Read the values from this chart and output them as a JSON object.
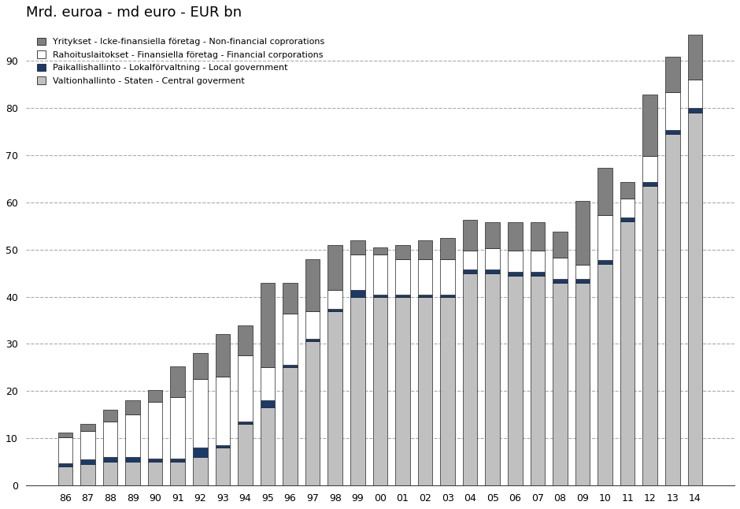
{
  "years": [
    "86",
    "87",
    "88",
    "89",
    "90",
    "91",
    "92",
    "93",
    "94",
    "95",
    "96",
    "97",
    "98",
    "99",
    "00",
    "01",
    "02",
    "03",
    "04",
    "05",
    "06",
    "07",
    "08",
    "09",
    "10",
    "11",
    "12",
    "13",
    "14"
  ],
  "central_gov": [
    4.0,
    4.5,
    5.0,
    5.0,
    5.0,
    5.0,
    6.0,
    8.0,
    13.0,
    16.5,
    25.0,
    30.5,
    37.0,
    40.0,
    40.0,
    40.0,
    40.0,
    40.0,
    45.0,
    45.0,
    44.5,
    44.5,
    43.0,
    43.0,
    47.0,
    56.0,
    63.5,
    74.5,
    79.0
  ],
  "local_gov": [
    0.8,
    1.0,
    1.0,
    1.0,
    0.8,
    0.8,
    2.0,
    0.5,
    0.5,
    1.5,
    0.5,
    0.5,
    0.5,
    1.5,
    0.5,
    0.5,
    0.5,
    0.5,
    0.8,
    0.8,
    0.8,
    0.8,
    0.8,
    0.8,
    0.8,
    0.8,
    0.8,
    0.8,
    1.0
  ],
  "financial_corp": [
    5.5,
    6.0,
    7.5,
    9.0,
    12.0,
    13.0,
    14.5,
    14.5,
    14.0,
    7.0,
    11.0,
    6.0,
    4.0,
    7.5,
    8.5,
    7.5,
    7.5,
    7.5,
    4.0,
    4.5,
    4.5,
    4.5,
    4.5,
    3.0,
    9.5,
    4.0,
    5.5,
    8.0,
    6.0
  ],
  "non_financial": [
    1.0,
    1.5,
    2.5,
    3.0,
    2.5,
    6.5,
    5.5,
    9.0,
    6.5,
    18.0,
    6.5,
    11.0,
    9.5,
    3.0,
    1.5,
    3.0,
    4.0,
    4.5,
    6.5,
    5.5,
    6.0,
    6.0,
    5.5,
    13.5,
    10.0,
    3.5,
    13.0,
    7.5,
    9.5
  ],
  "color_central": "#c0c0c0",
  "color_local": "#1a3a6b",
  "color_financial": "#ffffff",
  "color_non_financial": "#808080",
  "title": "Mrd. euroa - md euro - EUR bn",
  "legend_labels": [
    "Yritykset - Icke-finansiella företag - Non-financial coprorations",
    "Rahoituslaitokset - Finansiella företag - Financial corporations",
    "Paikallishallinto - Lokalförvaltning - Local government",
    "Valtionhallinto - Staten - Central goverment"
  ],
  "ylim": [
    0,
    97
  ],
  "yticks": [
    0,
    10,
    20,
    30,
    40,
    50,
    60,
    70,
    80,
    90
  ],
  "bar_width": 0.65,
  "edge_color": "#222222",
  "background_color": "#ffffff"
}
